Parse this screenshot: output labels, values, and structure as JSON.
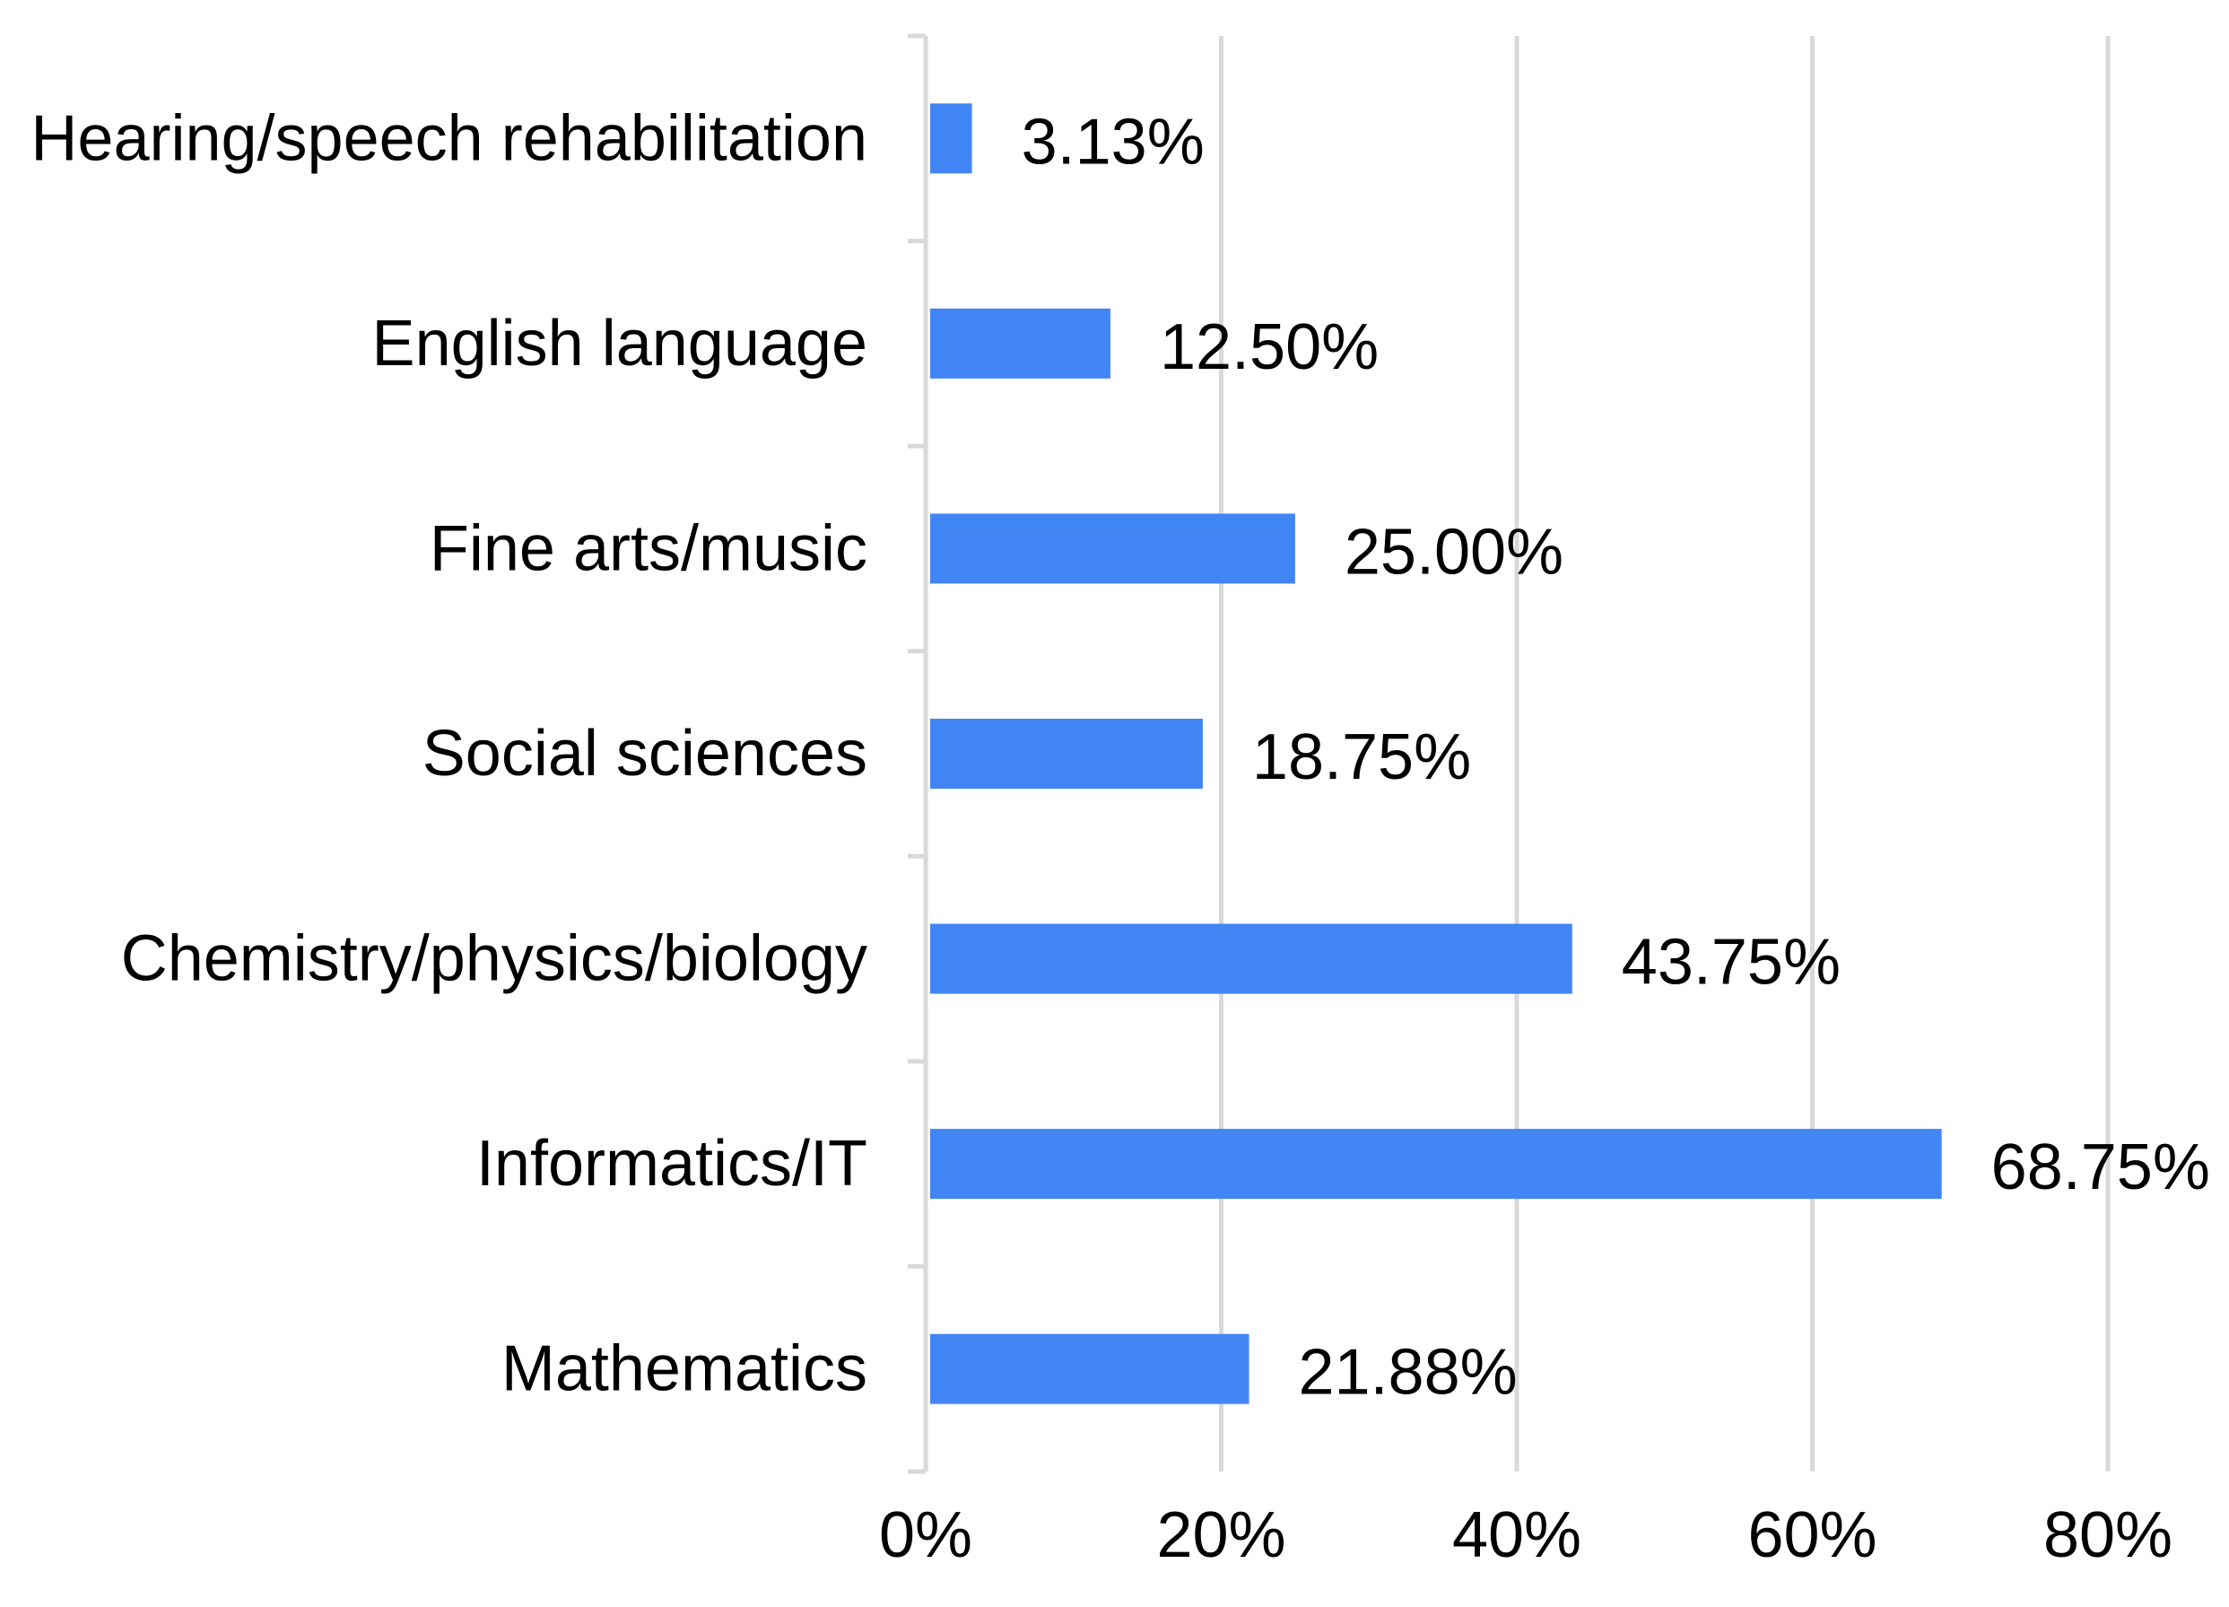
{
  "chart_data": {
    "type": "bar",
    "orientation": "horizontal",
    "categories": [
      "Hearing/speech rehabilitation",
      "English language",
      "Fine arts/music",
      "Social sciences",
      "Chemistry/physics/biology",
      "Informatics/IT",
      "Mathematics"
    ],
    "values": [
      3.13,
      12.5,
      25.0,
      18.75,
      43.75,
      68.75,
      21.88
    ],
    "value_labels": [
      "3.13%",
      "12.50%",
      "25.00%",
      "18.75%",
      "43.75%",
      "68.75%",
      "21.88%"
    ],
    "xlim": [
      0,
      80
    ],
    "xticks": [
      0,
      20,
      40,
      60,
      80
    ],
    "xtick_labels": [
      "0%",
      "20%",
      "40%",
      "60%",
      "80%"
    ],
    "title": "",
    "xlabel": "",
    "ylabel": "",
    "grid": true,
    "legend": "none",
    "bar_color": "#4285f4",
    "grid_color": "#d9d9d9"
  }
}
